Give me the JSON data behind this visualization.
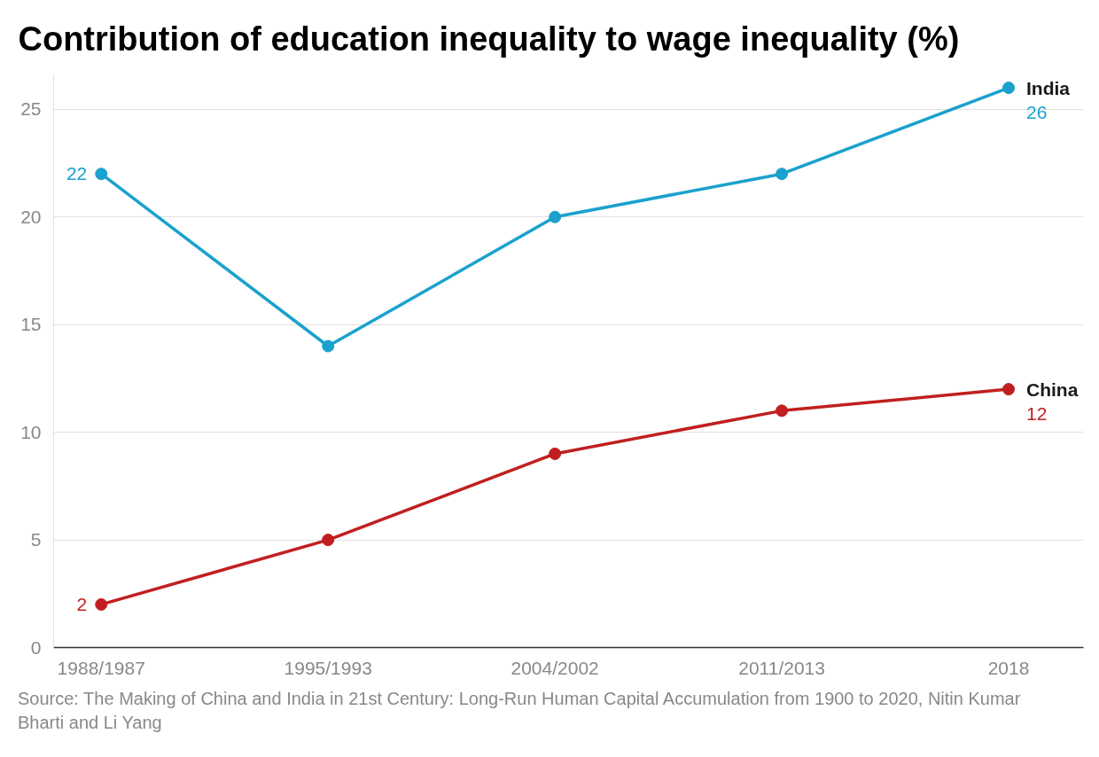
{
  "chart_data": {
    "type": "line",
    "title": "Contribution of education inequality to wage inequality (%)",
    "categories": [
      "1988/1987",
      "1995/1993",
      "2004/2002",
      "2011/2013",
      "2018"
    ],
    "series": [
      {
        "name": "India",
        "color": "#1aa1cd",
        "values": [
          22,
          14,
          20,
          22,
          26
        ],
        "value_labels": [
          "22",
          null,
          null,
          null,
          "26"
        ]
      },
      {
        "name": "China",
        "color": "#c11f1f",
        "values": [
          2,
          5,
          9,
          11,
          12
        ],
        "value_labels": [
          "2",
          null,
          null,
          null,
          "12"
        ]
      }
    ],
    "ylim": [
      0,
      26.6
    ],
    "yticks": [
      0,
      5,
      10,
      15,
      20,
      25
    ],
    "grid": "y",
    "marker": "circle",
    "line_style": "solid",
    "legend": false,
    "annotations": [
      "Source: The Making of China and India in 21st Century: Long-Run Human Capital Accumulation from 1900 to 2020, Nitin Kumar Bharti and Li Yang"
    ]
  }
}
